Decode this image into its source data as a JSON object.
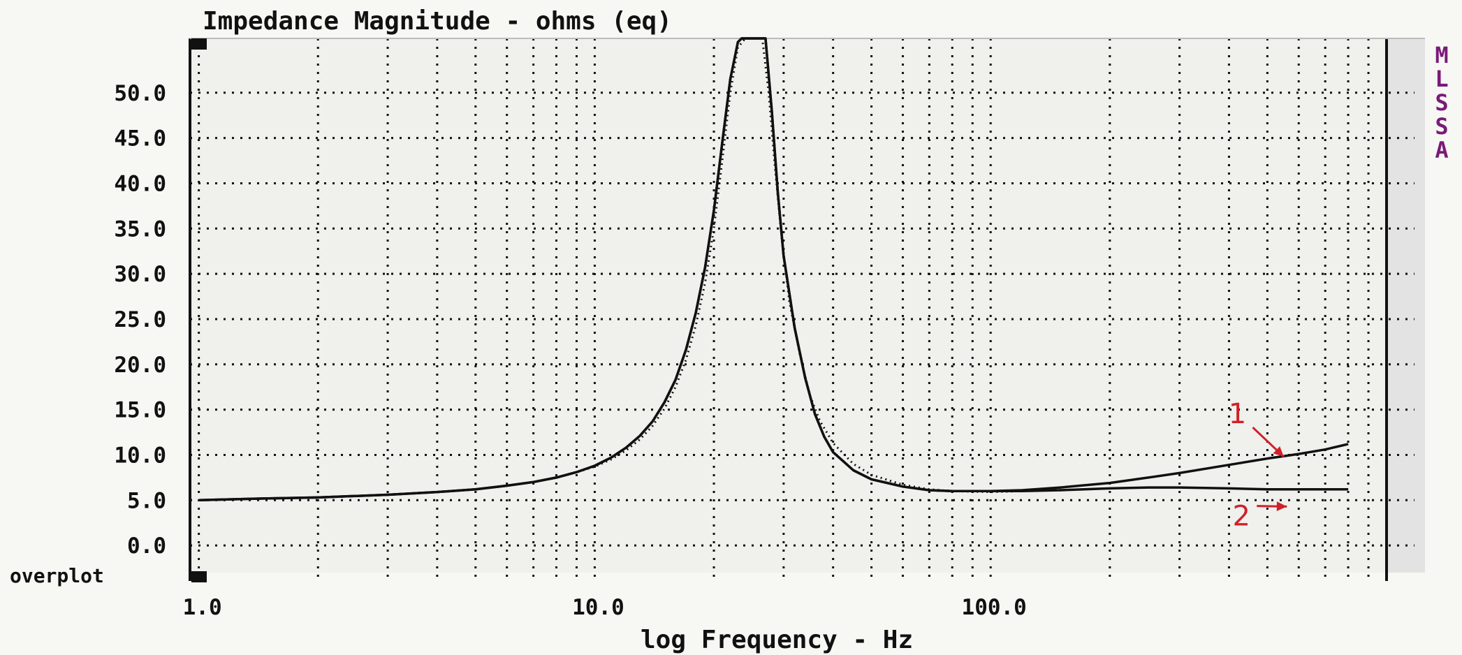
{
  "chart_data": {
    "type": "line",
    "title": "Impedance Magnitude - ohms (eq)",
    "xlabel": "log Frequency - Hz",
    "ylabel": "",
    "x_scale": "log",
    "xlim": [
      0.95,
      1000
    ],
    "ylim": [
      -3,
      56
    ],
    "x_tick_labels": [
      {
        "value": 1,
        "label": "1.0"
      },
      {
        "value": 10,
        "label": "10.0"
      },
      {
        "value": 100,
        "label": "100.0"
      }
    ],
    "y_tick_labels": [
      {
        "value": 0,
        "label": "0.0"
      },
      {
        "value": 5,
        "label": "5.0"
      },
      {
        "value": 10,
        "label": "10.0"
      },
      {
        "value": 15,
        "label": "15.0"
      },
      {
        "value": 20,
        "label": "20.0"
      },
      {
        "value": 25,
        "label": "25.0"
      },
      {
        "value": 30,
        "label": "30.0"
      },
      {
        "value": 35,
        "label": "35.0"
      },
      {
        "value": 40,
        "label": "40.0"
      },
      {
        "value": 45,
        "label": "45.0"
      },
      {
        "value": 50,
        "label": "50.0"
      }
    ],
    "grid": true,
    "grid_style": "dotted",
    "side_label": [
      "M",
      "L",
      "S",
      "S",
      "A"
    ],
    "overplot_label": "overplot",
    "colors": {
      "background": "#f7f7f4",
      "plot_background": "#f0f0ec",
      "line": "#111111",
      "grid": "#111111",
      "side_label": "#7a1a78",
      "annotation": "#d0202a"
    },
    "series": [
      {
        "name": "1",
        "x": [
          1,
          1.5,
          2,
          3,
          4,
          5,
          6,
          7,
          8,
          9,
          10,
          11,
          12,
          13,
          14,
          15,
          16,
          17,
          18,
          19,
          20,
          21,
          22,
          23,
          23.5,
          27,
          28,
          29,
          30,
          32,
          34,
          36,
          38,
          40,
          45,
          50,
          60,
          70,
          80,
          100,
          120,
          150,
          200,
          250,
          300,
          400,
          500,
          600,
          700,
          800
        ],
        "y": [
          5.0,
          5.2,
          5.3,
          5.6,
          5.9,
          6.2,
          6.6,
          7.0,
          7.5,
          8.1,
          8.8,
          9.7,
          10.8,
          12.1,
          13.7,
          15.8,
          18.3,
          21.6,
          25.7,
          30.7,
          37.0,
          44.5,
          51.5,
          55.6,
          56.5,
          56.5,
          48.0,
          39.0,
          32.0,
          24.0,
          18.5,
          14.5,
          12.0,
          10.3,
          8.3,
          7.3,
          6.5,
          6.1,
          6.0,
          6.0,
          6.1,
          6.4,
          6.9,
          7.5,
          8.0,
          8.9,
          9.6,
          10.1,
          10.6,
          11.2
        ]
      },
      {
        "name": "2",
        "x": [
          1,
          1.5,
          2,
          3,
          4,
          5,
          6,
          7,
          8,
          9,
          10,
          11,
          12,
          13,
          14,
          15,
          16,
          17,
          18,
          19,
          20,
          21,
          22,
          23,
          23.5,
          27,
          28,
          29,
          30,
          32,
          34,
          36,
          38,
          40,
          45,
          50,
          60,
          70,
          80,
          100,
          120,
          150,
          200,
          250,
          300,
          400,
          500,
          600,
          700,
          800
        ],
        "y": [
          5.0,
          5.2,
          5.3,
          5.6,
          5.9,
          6.2,
          6.6,
          7.0,
          7.5,
          8.1,
          8.8,
          9.7,
          10.8,
          12.1,
          13.7,
          15.8,
          18.3,
          21.6,
          25.7,
          30.7,
          37.0,
          44.5,
          51.5,
          55.6,
          56.5,
          56.5,
          48.0,
          39.0,
          32.0,
          24.0,
          18.5,
          14.5,
          12.0,
          10.3,
          8.3,
          7.3,
          6.5,
          6.1,
          6.0,
          6.0,
          6.0,
          6.1,
          6.3,
          6.4,
          6.4,
          6.3,
          6.2,
          6.2,
          6.2,
          6.2
        ]
      },
      {
        "name": "",
        "style": "dotted",
        "x": [
          1,
          1.5,
          2,
          3,
          4,
          5,
          6,
          7,
          8,
          9,
          10,
          11,
          12,
          13,
          14,
          15,
          16,
          17,
          18,
          19,
          20,
          21,
          22,
          23,
          24,
          26.5,
          27.5,
          28.5,
          29.5,
          31,
          33,
          35,
          37,
          40,
          45,
          50,
          60,
          70,
          80,
          100,
          120,
          150
        ],
        "y": [
          5.0,
          5.2,
          5.3,
          5.6,
          5.9,
          6.2,
          6.6,
          7.0,
          7.5,
          8.1,
          8.7,
          9.5,
          10.5,
          11.7,
          13.2,
          15.1,
          17.5,
          20.5,
          24.3,
          29.0,
          35.0,
          42.5,
          50.0,
          55.0,
          56.5,
          56.5,
          50.0,
          42.0,
          35.0,
          27.0,
          21.0,
          16.5,
          13.8,
          11.3,
          9.0,
          7.8,
          6.7,
          6.2,
          6.0,
          5.9,
          6.0,
          6.2
        ]
      }
    ],
    "annotations": [
      {
        "label": "1",
        "x": 550,
        "y": 9.8,
        "text_x": 420,
        "text_y": 13.5
      },
      {
        "label": "2",
        "x": 560,
        "y": 4.3,
        "text_x": 430,
        "text_y": 2.2
      }
    ]
  }
}
